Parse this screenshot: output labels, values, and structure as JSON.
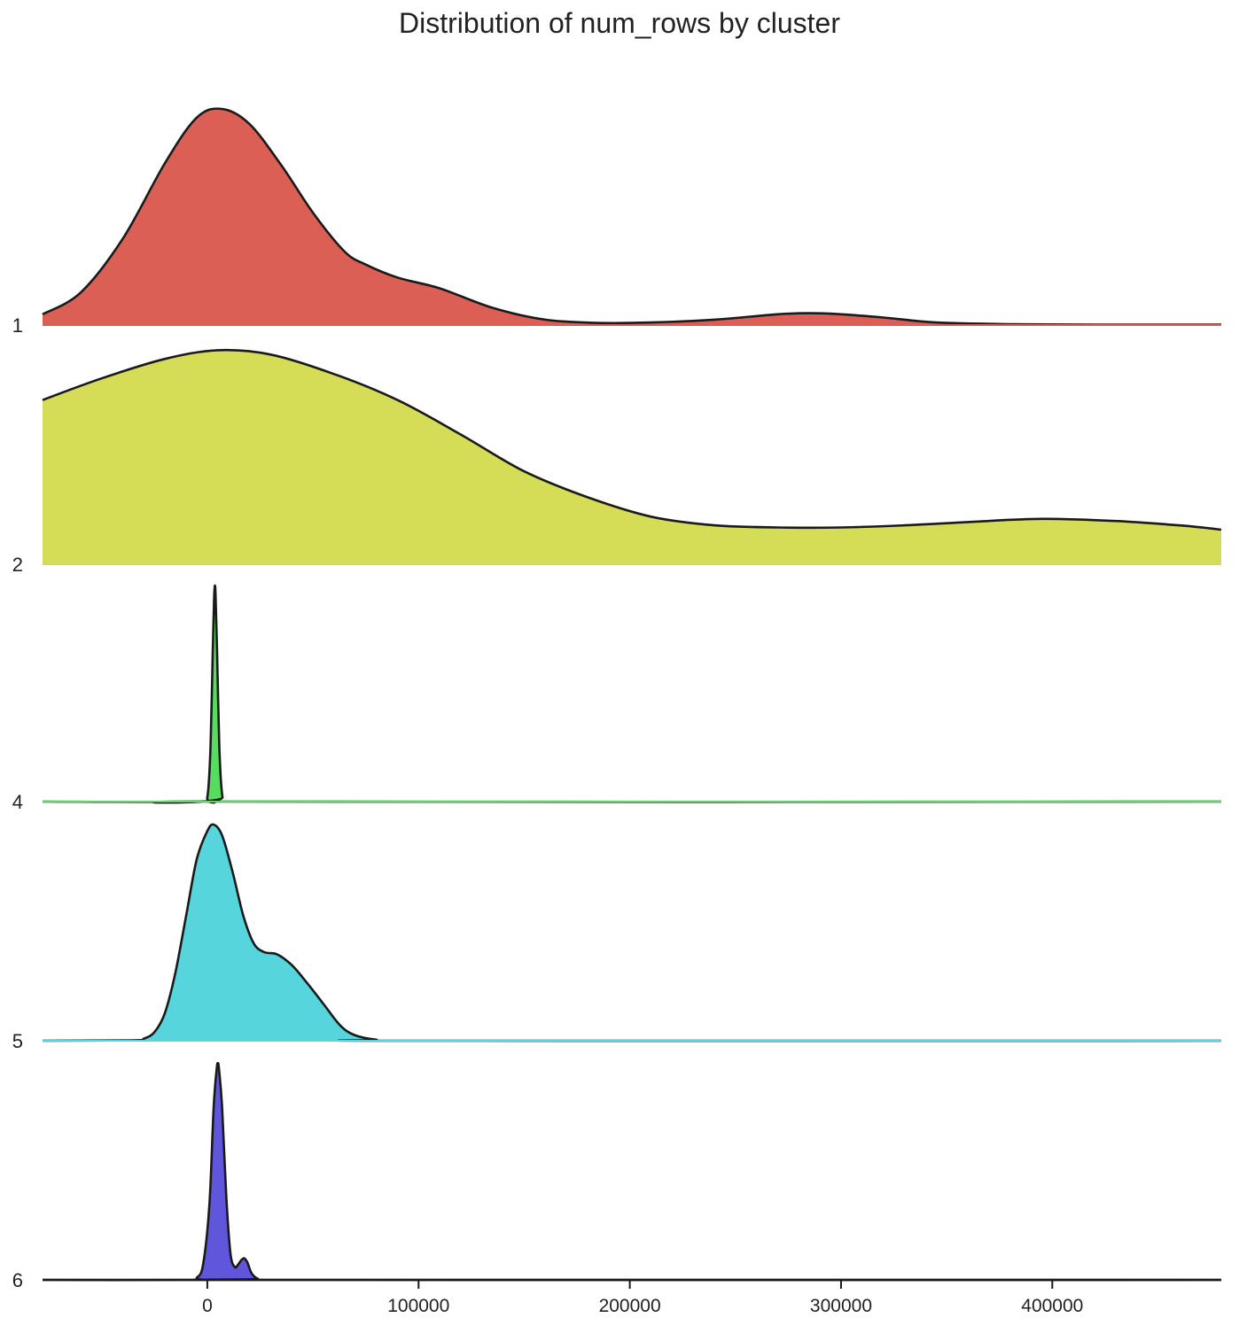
{
  "chart_data": {
    "type": "area",
    "subtype": "ridgeline-kde",
    "title": "Distribution of num_rows by cluster",
    "xlabel": "",
    "ylabel": "",
    "xlim": [
      -78000,
      480000
    ],
    "x_ticks": [
      0,
      100000,
      200000,
      300000,
      400000
    ],
    "x_tick_labels": [
      "0",
      "100000",
      "200000",
      "300000",
      "400000"
    ],
    "grid": false,
    "legend": "none",
    "series": [
      {
        "name": "1",
        "color": "#dc5f56",
        "points": [
          [
            -78000,
            0.05
          ],
          [
            -60000,
            0.15
          ],
          [
            -40000,
            0.4
          ],
          [
            -20000,
            0.75
          ],
          [
            -5000,
            0.96
          ],
          [
            7000,
            1.0
          ],
          [
            20000,
            0.93
          ],
          [
            35000,
            0.74
          ],
          [
            50000,
            0.52
          ],
          [
            65000,
            0.34
          ],
          [
            75000,
            0.28
          ],
          [
            90000,
            0.22
          ],
          [
            110000,
            0.17
          ],
          [
            135000,
            0.08
          ],
          [
            160000,
            0.025
          ],
          [
            185000,
            0.01
          ],
          [
            210000,
            0.012
          ],
          [
            240000,
            0.025
          ],
          [
            270000,
            0.05
          ],
          [
            285000,
            0.055
          ],
          [
            300000,
            0.05
          ],
          [
            320000,
            0.035
          ],
          [
            345000,
            0.012
          ],
          [
            380000,
            0.004
          ],
          [
            420000,
            0.002
          ],
          [
            480000,
            0.002
          ]
        ]
      },
      {
        "name": "2",
        "color": "#d5dc56",
        "points": [
          [
            -78000,
            0.76
          ],
          [
            -50000,
            0.86
          ],
          [
            -20000,
            0.95
          ],
          [
            5000,
            0.99
          ],
          [
            30000,
            0.97
          ],
          [
            60000,
            0.88
          ],
          [
            90000,
            0.76
          ],
          [
            120000,
            0.6
          ],
          [
            150000,
            0.43
          ],
          [
            180000,
            0.31
          ],
          [
            210000,
            0.22
          ],
          [
            240000,
            0.18
          ],
          [
            270000,
            0.17
          ],
          [
            300000,
            0.17
          ],
          [
            330000,
            0.18
          ],
          [
            360000,
            0.195
          ],
          [
            395000,
            0.21
          ],
          [
            430000,
            0.2
          ],
          [
            460000,
            0.18
          ],
          [
            480000,
            0.16
          ]
        ]
      },
      {
        "name": "4",
        "color": "#56dc5f",
        "points": [
          [
            -78000,
            0
          ],
          [
            -3000,
            0
          ],
          [
            0,
            0.02
          ],
          [
            1500,
            0.25
          ],
          [
            2600,
            0.7
          ],
          [
            3200,
            0.93
          ],
          [
            3600,
            1.0
          ],
          [
            4000,
            0.93
          ],
          [
            4600,
            0.7
          ],
          [
            5700,
            0.25
          ],
          [
            7200,
            0.02
          ],
          [
            10000,
            0
          ],
          [
            480000,
            0
          ]
        ]
      },
      {
        "name": "5",
        "color": "#56d5dc",
        "points": [
          [
            -78000,
            0
          ],
          [
            -35000,
            0.002
          ],
          [
            -30000,
            0.01
          ],
          [
            -25000,
            0.04
          ],
          [
            -20000,
            0.13
          ],
          [
            -15000,
            0.32
          ],
          [
            -10000,
            0.58
          ],
          [
            -5000,
            0.84
          ],
          [
            0,
            0.97
          ],
          [
            3000,
            1.0
          ],
          [
            7000,
            0.95
          ],
          [
            12000,
            0.78
          ],
          [
            17000,
            0.58
          ],
          [
            22000,
            0.45
          ],
          [
            27000,
            0.41
          ],
          [
            33000,
            0.4
          ],
          [
            40000,
            0.35
          ],
          [
            47000,
            0.27
          ],
          [
            55000,
            0.17
          ],
          [
            63000,
            0.07
          ],
          [
            70000,
            0.025
          ],
          [
            80000,
            0.005
          ],
          [
            95000,
            0
          ],
          [
            480000,
            0
          ]
        ]
      },
      {
        "name": "6",
        "color": "#5f56dc",
        "points": [
          [
            -78000,
            0
          ],
          [
            -8000,
            0
          ],
          [
            -5000,
            0.01
          ],
          [
            -2000,
            0.07
          ],
          [
            1000,
            0.35
          ],
          [
            3000,
            0.8
          ],
          [
            4500,
            0.98
          ],
          [
            5000,
            1.0
          ],
          [
            5500,
            0.98
          ],
          [
            7000,
            0.8
          ],
          [
            9000,
            0.38
          ],
          [
            11000,
            0.12
          ],
          [
            13000,
            0.06
          ],
          [
            14500,
            0.07
          ],
          [
            16000,
            0.09
          ],
          [
            17500,
            0.1
          ],
          [
            19000,
            0.08
          ],
          [
            21000,
            0.03
          ],
          [
            24000,
            0.005
          ],
          [
            28000,
            0
          ],
          [
            480000,
            0
          ]
        ]
      }
    ]
  }
}
